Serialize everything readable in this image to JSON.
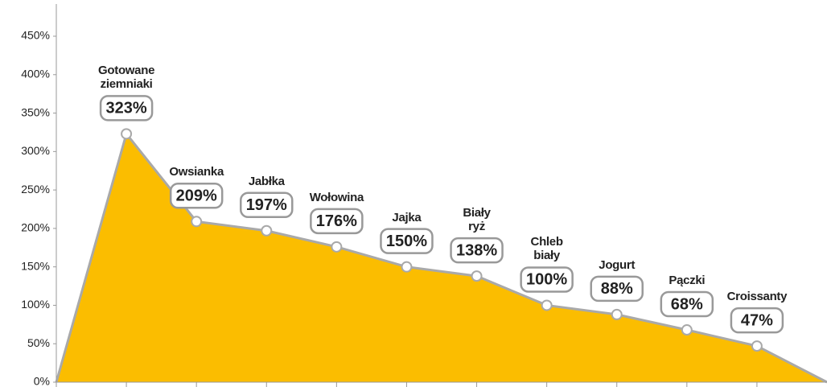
{
  "chart_data": {
    "type": "area",
    "categories": [
      "Gotowane\nziemniaki",
      "Owsianka",
      "Jabłka",
      "Wołowina",
      "Jajka",
      "Biały\nryż",
      "Chleb\nbiały",
      "Jogurt",
      "Pączki",
      "Croissanty"
    ],
    "values": [
      323,
      209,
      197,
      176,
      150,
      138,
      100,
      88,
      68,
      47
    ],
    "value_labels": [
      "323%",
      "209%",
      "197%",
      "176%",
      "150%",
      "138%",
      "100%",
      "88%",
      "68%",
      "47%"
    ],
    "color": "#fbbd00",
    "line_color": "#a9a9a9",
    "ylim": [
      0,
      450
    ],
    "yticks": [
      {
        "value": 0,
        "label": "0%"
      },
      {
        "value": 50,
        "label": "50%"
      },
      {
        "value": 100,
        "label": "100%"
      },
      {
        "value": 150,
        "label": "150%"
      },
      {
        "value": 200,
        "label": "200%"
      },
      {
        "value": 250,
        "label": "250%"
      },
      {
        "value": 300,
        "label": "300%"
      },
      {
        "value": 350,
        "label": "350%"
      },
      {
        "value": 400,
        "label": "400%"
      },
      {
        "value": 450,
        "label": "450%"
      }
    ]
  }
}
